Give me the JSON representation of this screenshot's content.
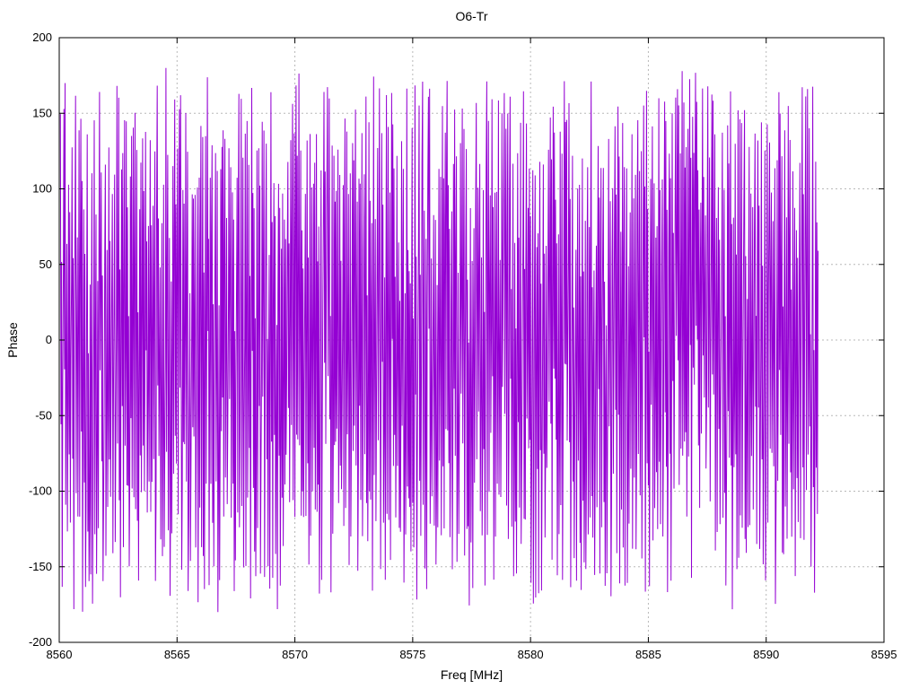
{
  "figure": {
    "title": "O6-Tr",
    "xlabel": "Freq [MHz]",
    "ylabel": "Phase"
  },
  "chart_data": {
    "type": "line",
    "title": "O6-Tr",
    "xlabel": "Freq [MHz]",
    "ylabel": "Phase",
    "xlim": [
      8560,
      8595
    ],
    "ylim": [
      -200,
      200
    ],
    "x_ticks": [
      8560,
      8565,
      8570,
      8575,
      8580,
      8585,
      8590,
      8595
    ],
    "y_ticks": [
      -200,
      -150,
      -100,
      -50,
      0,
      50,
      100,
      150,
      200
    ],
    "grid": true,
    "grid_style": "dashed-gray",
    "legend": "none",
    "background": "#ffffff",
    "axis_color": "#000000",
    "grid_color": "#b8b8b8",
    "series": [
      {
        "name": "O6-Tr",
        "color": "#9400d3",
        "description": "Dense rapidly-wrapping phase noise, essentially uniform between -180 and +180 degrees across the measured band",
        "x_start": 8560.05,
        "x_end": 8592.2,
        "n_points": 1300,
        "y_min": -180,
        "y_max": 180,
        "phase_step_min_deg": 55,
        "phase_step_max_deg": 205,
        "seed": 1337,
        "line_width": 1
      }
    ]
  }
}
